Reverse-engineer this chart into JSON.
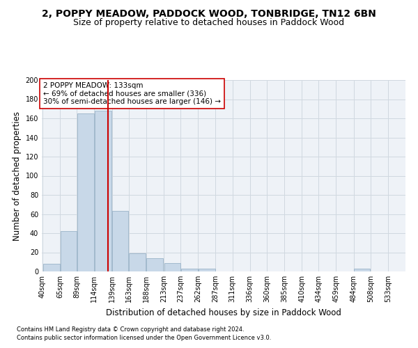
{
  "title": "2, POPPY MEADOW, PADDOCK WOOD, TONBRIDGE, TN12 6BN",
  "subtitle": "Size of property relative to detached houses in Paddock Wood",
  "xlabel": "Distribution of detached houses by size in Paddock Wood",
  "ylabel": "Number of detached properties",
  "footnote1": "Contains HM Land Registry data © Crown copyright and database right 2024.",
  "footnote2": "Contains public sector information licensed under the Open Government Licence v3.0.",
  "bin_edges": [
    40,
    65,
    89,
    114,
    139,
    163,
    188,
    213,
    237,
    262,
    287,
    311,
    336,
    360,
    385,
    410,
    434,
    459,
    484,
    508,
    533,
    558
  ],
  "bin_labels": [
    "40sqm",
    "65sqm",
    "89sqm",
    "114sqm",
    "139sqm",
    "163sqm",
    "188sqm",
    "213sqm",
    "237sqm",
    "262sqm",
    "287sqm",
    "311sqm",
    "336sqm",
    "360sqm",
    "385sqm",
    "410sqm",
    "434sqm",
    "459sqm",
    "484sqm",
    "508sqm",
    "533sqm"
  ],
  "bar_heights": [
    8,
    42,
    165,
    168,
    63,
    19,
    14,
    9,
    3,
    3,
    0,
    0,
    0,
    0,
    0,
    0,
    0,
    0,
    3,
    0,
    0
  ],
  "bar_facecolor": "#c8d8e8",
  "bar_edgecolor": "#9ab4c8",
  "property_size": 133,
  "vline_color": "#cc0000",
  "annotation_text": "2 POPPY MEADOW: 133sqm\n← 69% of detached houses are smaller (336)\n30% of semi-detached houses are larger (146) →",
  "annotation_boxcolor": "white",
  "annotation_boxedge": "#cc0000",
  "ylim": [
    0,
    200
  ],
  "yticks": [
    0,
    20,
    40,
    60,
    80,
    100,
    120,
    140,
    160,
    180,
    200
  ],
  "grid_color": "#d0d8e0",
  "bg_color": "#eef2f7",
  "title_fontsize": 10,
  "subtitle_fontsize": 9,
  "axis_label_fontsize": 8.5,
  "tick_fontsize": 7,
  "annotation_fontsize": 7.5,
  "footnote_fontsize": 6
}
